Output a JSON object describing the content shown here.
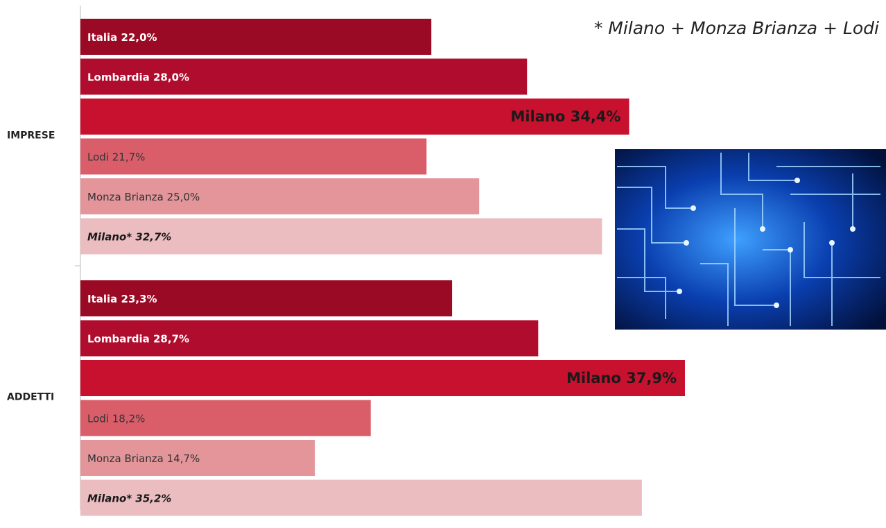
{
  "chart_data": {
    "type": "bar",
    "orientation": "horizontal",
    "annotation": "* Milano + Monza Brianza + Lodi",
    "categories": [
      "IMPRESE",
      "ADDETTI"
    ],
    "series": [
      {
        "name": "Italia",
        "color": "#9a0a25",
        "values": [
          22.0,
          23.3
        ],
        "value_labels": [
          "22,0%",
          "23,3%"
        ]
      },
      {
        "name": "Lombardia",
        "color": "#b00c2d",
        "values": [
          28.0,
          28.7
        ],
        "value_labels": [
          "28,0%",
          "28,7%"
        ]
      },
      {
        "name": "Milano",
        "color": "#c8102f",
        "values": [
          34.4,
          37.9
        ],
        "value_labels": [
          "34,4%",
          "37,9%"
        ]
      },
      {
        "name": "Lodi",
        "color": "#d95e69",
        "values": [
          21.7,
          18.2
        ],
        "value_labels": [
          "21,7%",
          "18,2%"
        ]
      },
      {
        "name": "Monza Brianza",
        "color": "#e3959a",
        "values": [
          25.0,
          14.7
        ],
        "value_labels": [
          "25,0%",
          "14,7%"
        ]
      },
      {
        "name": "Milano*",
        "color": "#ebbdc0",
        "values": [
          32.7,
          35.2
        ],
        "value_labels": [
          "32,7%",
          "35,2%"
        ]
      }
    ]
  }
}
